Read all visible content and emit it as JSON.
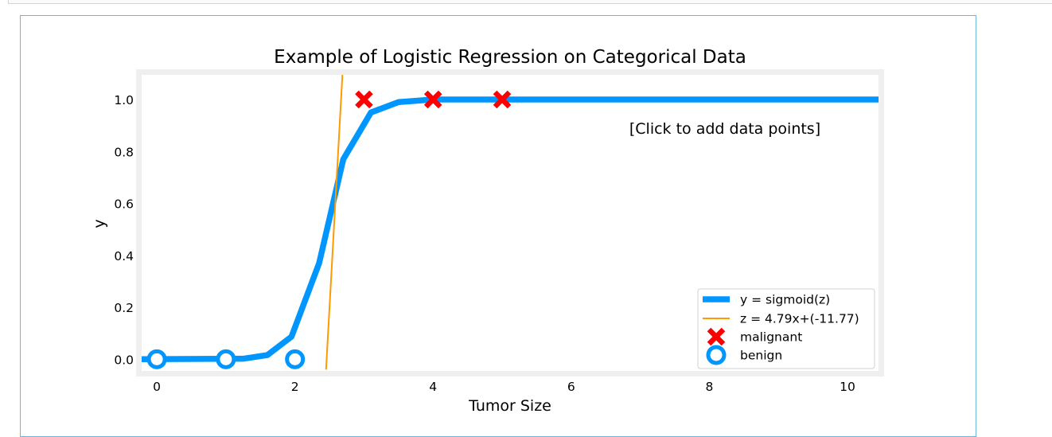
{
  "figure": {
    "colors": {
      "sigmoid": "#0096ff",
      "linear": "#ff9900",
      "malignant": "#ff0000",
      "benign": "#0096ff",
      "frame": "#efefef"
    }
  },
  "chart_data": {
    "type": "line",
    "title": "Example of Logistic Regression on Categorical Data",
    "xlabel": "Tumor Size",
    "ylabel": "y",
    "xlim": [
      -0.22,
      10.45
    ],
    "ylim": [
      -0.045,
      1.095
    ],
    "xticks": [
      0,
      2,
      4,
      6,
      8,
      10
    ],
    "yticks": [
      "0.0",
      "0.2",
      "0.4",
      "0.6",
      "0.8",
      "1.0"
    ],
    "annotation": "[Click to add data points]",
    "legend_position": "lower right",
    "series": [
      {
        "name": "y = sigmoid(z)",
        "kind": "line",
        "x": [
          -0.5,
          1.25,
          1.6,
          1.95,
          2.35,
          2.7,
          3.1,
          3.5,
          4.0,
          5.0,
          10.45
        ],
        "y": [
          0.0,
          0.002,
          0.016,
          0.087,
          0.37,
          0.77,
          0.95,
          0.99,
          1.0,
          1.0,
          1.0
        ]
      },
      {
        "name": "z = 4.79x+(-11.77)",
        "kind": "line",
        "slope": 4.79,
        "intercept": -11.77,
        "x": [
          2.4503,
          2.6883
        ],
        "y": [
          -0.04,
          1.1
        ]
      },
      {
        "name": "malignant",
        "kind": "scatter",
        "marker": "x",
        "x": [
          3,
          4,
          5
        ],
        "y": [
          1,
          1,
          1
        ]
      },
      {
        "name": "benign",
        "kind": "scatter",
        "marker": "o",
        "x": [
          0,
          1,
          2
        ],
        "y": [
          0,
          0,
          0
        ]
      }
    ]
  }
}
